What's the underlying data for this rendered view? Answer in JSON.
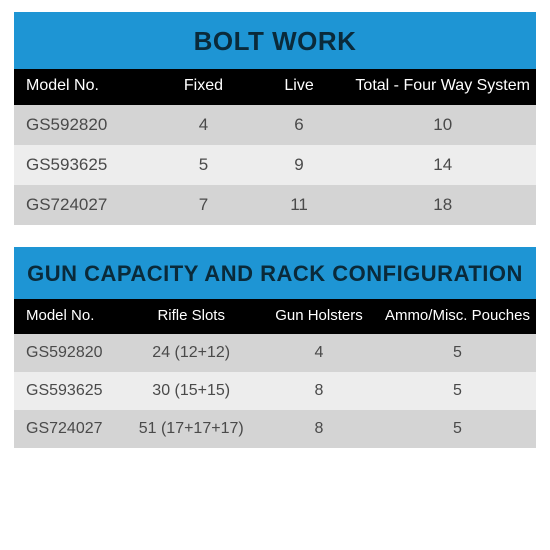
{
  "colors": {
    "title_bg": "#1e95d4",
    "title_fg": "#0a2a3a",
    "header_bg": "#000000",
    "header_fg": "#ffffff",
    "row_odd_bg": "#d4d4d4",
    "row_even_bg": "#ededed",
    "row_fg": "#4a4a4a"
  },
  "tables": [
    {
      "title": "BOLT WORK",
      "title_fontsize": 26,
      "col_widths": [
        "28%",
        "20%",
        "20%",
        "32%"
      ],
      "col_align": [
        "left",
        "center",
        "center",
        "center"
      ],
      "columns": [
        "Model No.",
        "Fixed",
        "Live",
        "Total - Four Way System"
      ],
      "rows": [
        [
          "GS592820",
          "4",
          "6",
          "10"
        ],
        [
          "GS593625",
          "5",
          "9",
          "14"
        ],
        [
          "GS724027",
          "7",
          "11",
          "18"
        ]
      ]
    },
    {
      "title": "GUN CAPACITY AND RACK CONFIGURATION",
      "title_fontsize": 22,
      "col_widths": [
        "20%",
        "28%",
        "22%",
        "30%"
      ],
      "col_align": [
        "left",
        "center",
        "center",
        "center"
      ],
      "columns": [
        "Model No.",
        "Rifle Slots",
        "Gun Holsters",
        "Ammo/Misc. Pouches"
      ],
      "rows": [
        [
          "GS592820",
          "24 (12+12)",
          "4",
          "5"
        ],
        [
          "GS593625",
          "30 (15+15)",
          "8",
          "5"
        ],
        [
          "GS724027",
          "51 (17+17+17)",
          "8",
          "5"
        ]
      ]
    }
  ]
}
